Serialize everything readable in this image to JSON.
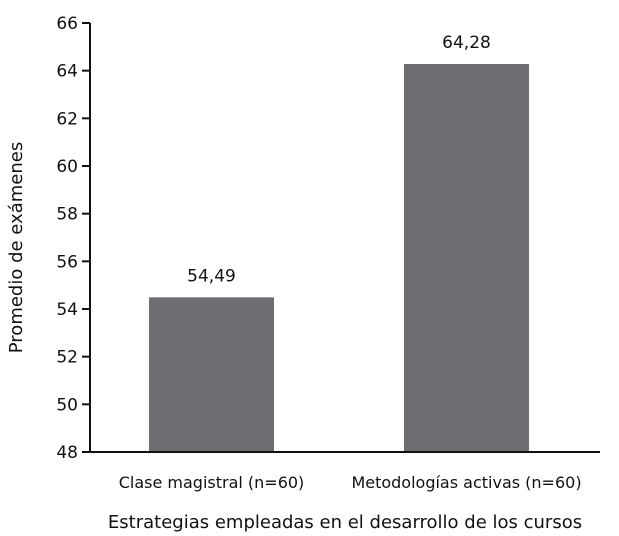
{
  "chart_data": {
    "type": "bar",
    "categories": [
      "Clase magistral (n=60)",
      "Metodologías activas (n=60)"
    ],
    "values": [
      54.49,
      64.28
    ],
    "value_labels": [
      "54,49",
      "64,28"
    ],
    "xlabel": "Estrategias empleadas en el desarrollo de los cursos",
    "ylabel": "Promedio de exámenes",
    "ylim": [
      48,
      66
    ],
    "yticks": [
      48,
      50,
      52,
      54,
      56,
      58,
      60,
      62,
      64,
      66
    ],
    "grid": false,
    "bar_color": "#6d6e71"
  }
}
